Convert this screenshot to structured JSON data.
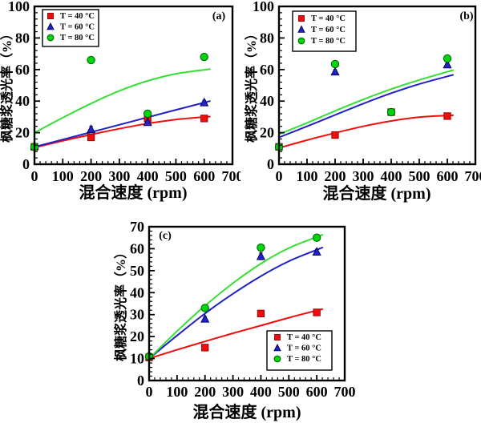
{
  "figure": {
    "background": "#ffffff",
    "text_color": "#000000"
  },
  "chart_data": [
    {
      "id": "a",
      "type": "scatter",
      "panel_label": "(a)",
      "xlabel": "混合速度 (rpm)",
      "ylabel": "枫糖浆透光率（%）",
      "xlim": [
        0,
        700
      ],
      "ylim": [
        0,
        100
      ],
      "xticks": [
        0,
        100,
        200,
        300,
        400,
        500,
        600,
        700
      ],
      "yticks": [
        0,
        20,
        40,
        60,
        80,
        100
      ],
      "x_minor_step": 20,
      "y_minor_step": 4,
      "grid": false,
      "legend_position": "top-left",
      "series": [
        {
          "name": "T = 40 °C",
          "marker": "square",
          "color": "#f20d0d",
          "edge": "#8e0000",
          "line": "#f20d0d",
          "points": [
            [
              0,
              11
            ],
            [
              200,
              17
            ],
            [
              400,
              29
            ],
            [
              600,
              29
            ]
          ],
          "fit": [
            [
              0,
              10.5
            ],
            [
              100,
              14.8
            ],
            [
              200,
              18.8
            ],
            [
              300,
              22.5
            ],
            [
              400,
              25.8
            ],
            [
              500,
              28.3
            ],
            [
              620,
              30.2
            ]
          ]
        },
        {
          "name": "T = 60 °C",
          "marker": "triangle",
          "color": "#2222cd",
          "edge": "#00004d",
          "line": "#2020c8",
          "points": [
            [
              0,
              11.5
            ],
            [
              200,
              22,
              2
            ],
            [
              400,
              26.5
            ],
            [
              600,
              39,
              1.5
            ]
          ],
          "fit": [
            [
              0,
              11
            ],
            [
              155,
              18.2
            ],
            [
              310,
              25.5
            ],
            [
              465,
              32.8
            ],
            [
              620,
              40
            ]
          ]
        },
        {
          "name": "T = 80 °C",
          "marker": "circle",
          "color": "#00d40a",
          "edge": "#006008",
          "line": "#35df35",
          "points": [
            [
              0,
              11
            ],
            [
              200,
              66
            ],
            [
              400,
              32
            ],
            [
              600,
              68
            ]
          ],
          "fit": [
            [
              0,
              20
            ],
            [
              100,
              29.5
            ],
            [
              200,
              38.5
            ],
            [
              300,
              46.5
            ],
            [
              400,
              52.8
            ],
            [
              500,
              57.3
            ],
            [
              620,
              60.3
            ]
          ]
        }
      ]
    },
    {
      "id": "b",
      "type": "scatter",
      "panel_label": "(b)",
      "xlabel": "混合速度 (rpm)",
      "ylabel": "枫糖浆透光率（%）",
      "xlim": [
        0,
        700
      ],
      "ylim": [
        0,
        100
      ],
      "xticks": [
        0,
        100,
        200,
        300,
        400,
        500,
        600,
        700
      ],
      "yticks": [
        0,
        20,
        40,
        60,
        80,
        100
      ],
      "x_minor_step": 20,
      "y_minor_step": 4,
      "grid": false,
      "legend_position": "top-left",
      "series": [
        {
          "name": "T = 40 °C",
          "marker": "square",
          "color": "#f20d0d",
          "edge": "#8e0000",
          "line": "#f20d0d",
          "points": [
            [
              0,
              11
            ],
            [
              200,
              18.5
            ],
            [
              400,
              33
            ],
            [
              600,
              30.5
            ]
          ],
          "fit": [
            [
              0,
              10.3
            ],
            [
              100,
              15.3
            ],
            [
              200,
              19.8
            ],
            [
              300,
              24
            ],
            [
              400,
              27.4
            ],
            [
              500,
              29.8
            ],
            [
              620,
              31
            ]
          ]
        },
        {
          "name": "T = 60 °C",
          "marker": "triangle",
          "color": "#2222cd",
          "edge": "#00004d",
          "line": "#2020c8",
          "points": [
            [
              200,
              58.5,
              1.5
            ],
            [
              600,
              63,
              1.2
            ]
          ],
          "fit": [
            [
              0,
              17
            ],
            [
              100,
              24
            ],
            [
              200,
              31.2
            ],
            [
              300,
              38.4
            ],
            [
              400,
              45
            ],
            [
              500,
              50.8
            ],
            [
              620,
              56.6
            ]
          ]
        },
        {
          "name": "T = 80 °C",
          "marker": "circle",
          "color": "#00d40a",
          "edge": "#006008",
          "line": "#35df35",
          "points": [
            [
              0,
              11
            ],
            [
              200,
              63.5
            ],
            [
              400,
              33
            ],
            [
              600,
              67
            ]
          ],
          "fit": [
            [
              0,
              19
            ],
            [
              100,
              26.2
            ],
            [
              200,
              33.8
            ],
            [
              300,
              41
            ],
            [
              400,
              47.6
            ],
            [
              500,
              53.4
            ],
            [
              620,
              59.6
            ]
          ]
        }
      ]
    },
    {
      "id": "c",
      "type": "scatter",
      "panel_label": "(c)",
      "xlabel": "混合速度 (rpm)",
      "ylabel": "枫糖浆透光率（%）",
      "xlim": [
        0,
        700
      ],
      "ylim": [
        0,
        70
      ],
      "xticks": [
        0,
        100,
        200,
        300,
        400,
        500,
        600,
        700
      ],
      "yticks": [
        0,
        10,
        20,
        30,
        40,
        50,
        60,
        70
      ],
      "x_minor_step": 20,
      "y_minor_step": 2,
      "grid": false,
      "legend_position": "bottom-right",
      "series": [
        {
          "name": "T = 40 °C",
          "marker": "square",
          "color": "#f20d0d",
          "edge": "#8e0000",
          "line": "#f20d0d",
          "points": [
            [
              0,
              10.5
            ],
            [
              200,
              15
            ],
            [
              400,
              30.5
            ],
            [
              600,
              31
            ]
          ],
          "fit": [
            [
              0,
              10
            ],
            [
              100,
              14
            ],
            [
              200,
              17.8
            ],
            [
              300,
              21.5
            ],
            [
              400,
              25
            ],
            [
              500,
              28.6
            ],
            [
              620,
              32.5
            ]
          ]
        },
        {
          "name": "T = 60 °C",
          "marker": "triangle",
          "color": "#2222cd",
          "edge": "#00004d",
          "line": "#2020c8",
          "points": [
            [
              200,
              28,
              1
            ],
            [
              400,
              56.5,
              1.5
            ],
            [
              600,
              58.5,
              1.2
            ]
          ],
          "fit": [
            [
              0,
              10
            ],
            [
              100,
              20.5
            ],
            [
              200,
              30.5
            ],
            [
              300,
              39.5
            ],
            [
              400,
              47.5
            ],
            [
              500,
              54.3
            ],
            [
              620,
              60.5
            ]
          ]
        },
        {
          "name": "T = 80 °C",
          "marker": "circle",
          "color": "#00d40a",
          "edge": "#006008",
          "line": "#35df35",
          "points": [
            [
              0,
              11
            ],
            [
              200,
              33
            ],
            [
              400,
              60.5,
              1
            ],
            [
              600,
              65
            ]
          ],
          "fit": [
            [
              0,
              10
            ],
            [
              100,
              22.5
            ],
            [
              200,
              34
            ],
            [
              300,
              44.3
            ],
            [
              400,
              53.2
            ],
            [
              500,
              60.3
            ],
            [
              620,
              66.3
            ]
          ]
        }
      ]
    }
  ]
}
